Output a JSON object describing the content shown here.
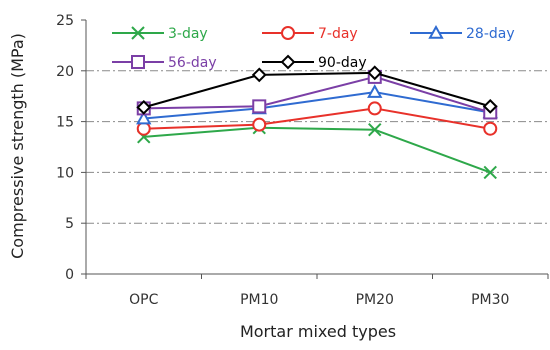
{
  "chart_data": {
    "type": "line",
    "xlabel": "Mortar mixed types",
    "ylabel": "Compressive strength (MPa)",
    "categories": [
      "OPC",
      "PM10",
      "PM20",
      "PM30"
    ],
    "ylim": [
      0,
      25
    ],
    "yticks": [
      0,
      5,
      10,
      15,
      20,
      25
    ],
    "grid": "horizontal dash-dot",
    "legend_position": "top, inside plot",
    "series": [
      {
        "name": "3-day",
        "color": "#2ea84a",
        "marker": "x",
        "values": [
          13.5,
          14.4,
          14.2,
          10.0
        ]
      },
      {
        "name": "7-day",
        "color": "#e8312a",
        "marker": "circle",
        "values": [
          14.3,
          14.7,
          16.3,
          14.3
        ]
      },
      {
        "name": "28-day",
        "color": "#2f6bd1",
        "marker": "triangle",
        "values": [
          15.3,
          16.3,
          17.9,
          15.9
        ]
      },
      {
        "name": "56-day",
        "color": "#7b3fa6",
        "marker": "square",
        "values": [
          16.3,
          16.5,
          19.4,
          15.9
        ]
      },
      {
        "name": "90-day",
        "color": "#000000",
        "marker": "diamond",
        "values": [
          16.4,
          19.6,
          19.8,
          16.5
        ]
      }
    ]
  }
}
